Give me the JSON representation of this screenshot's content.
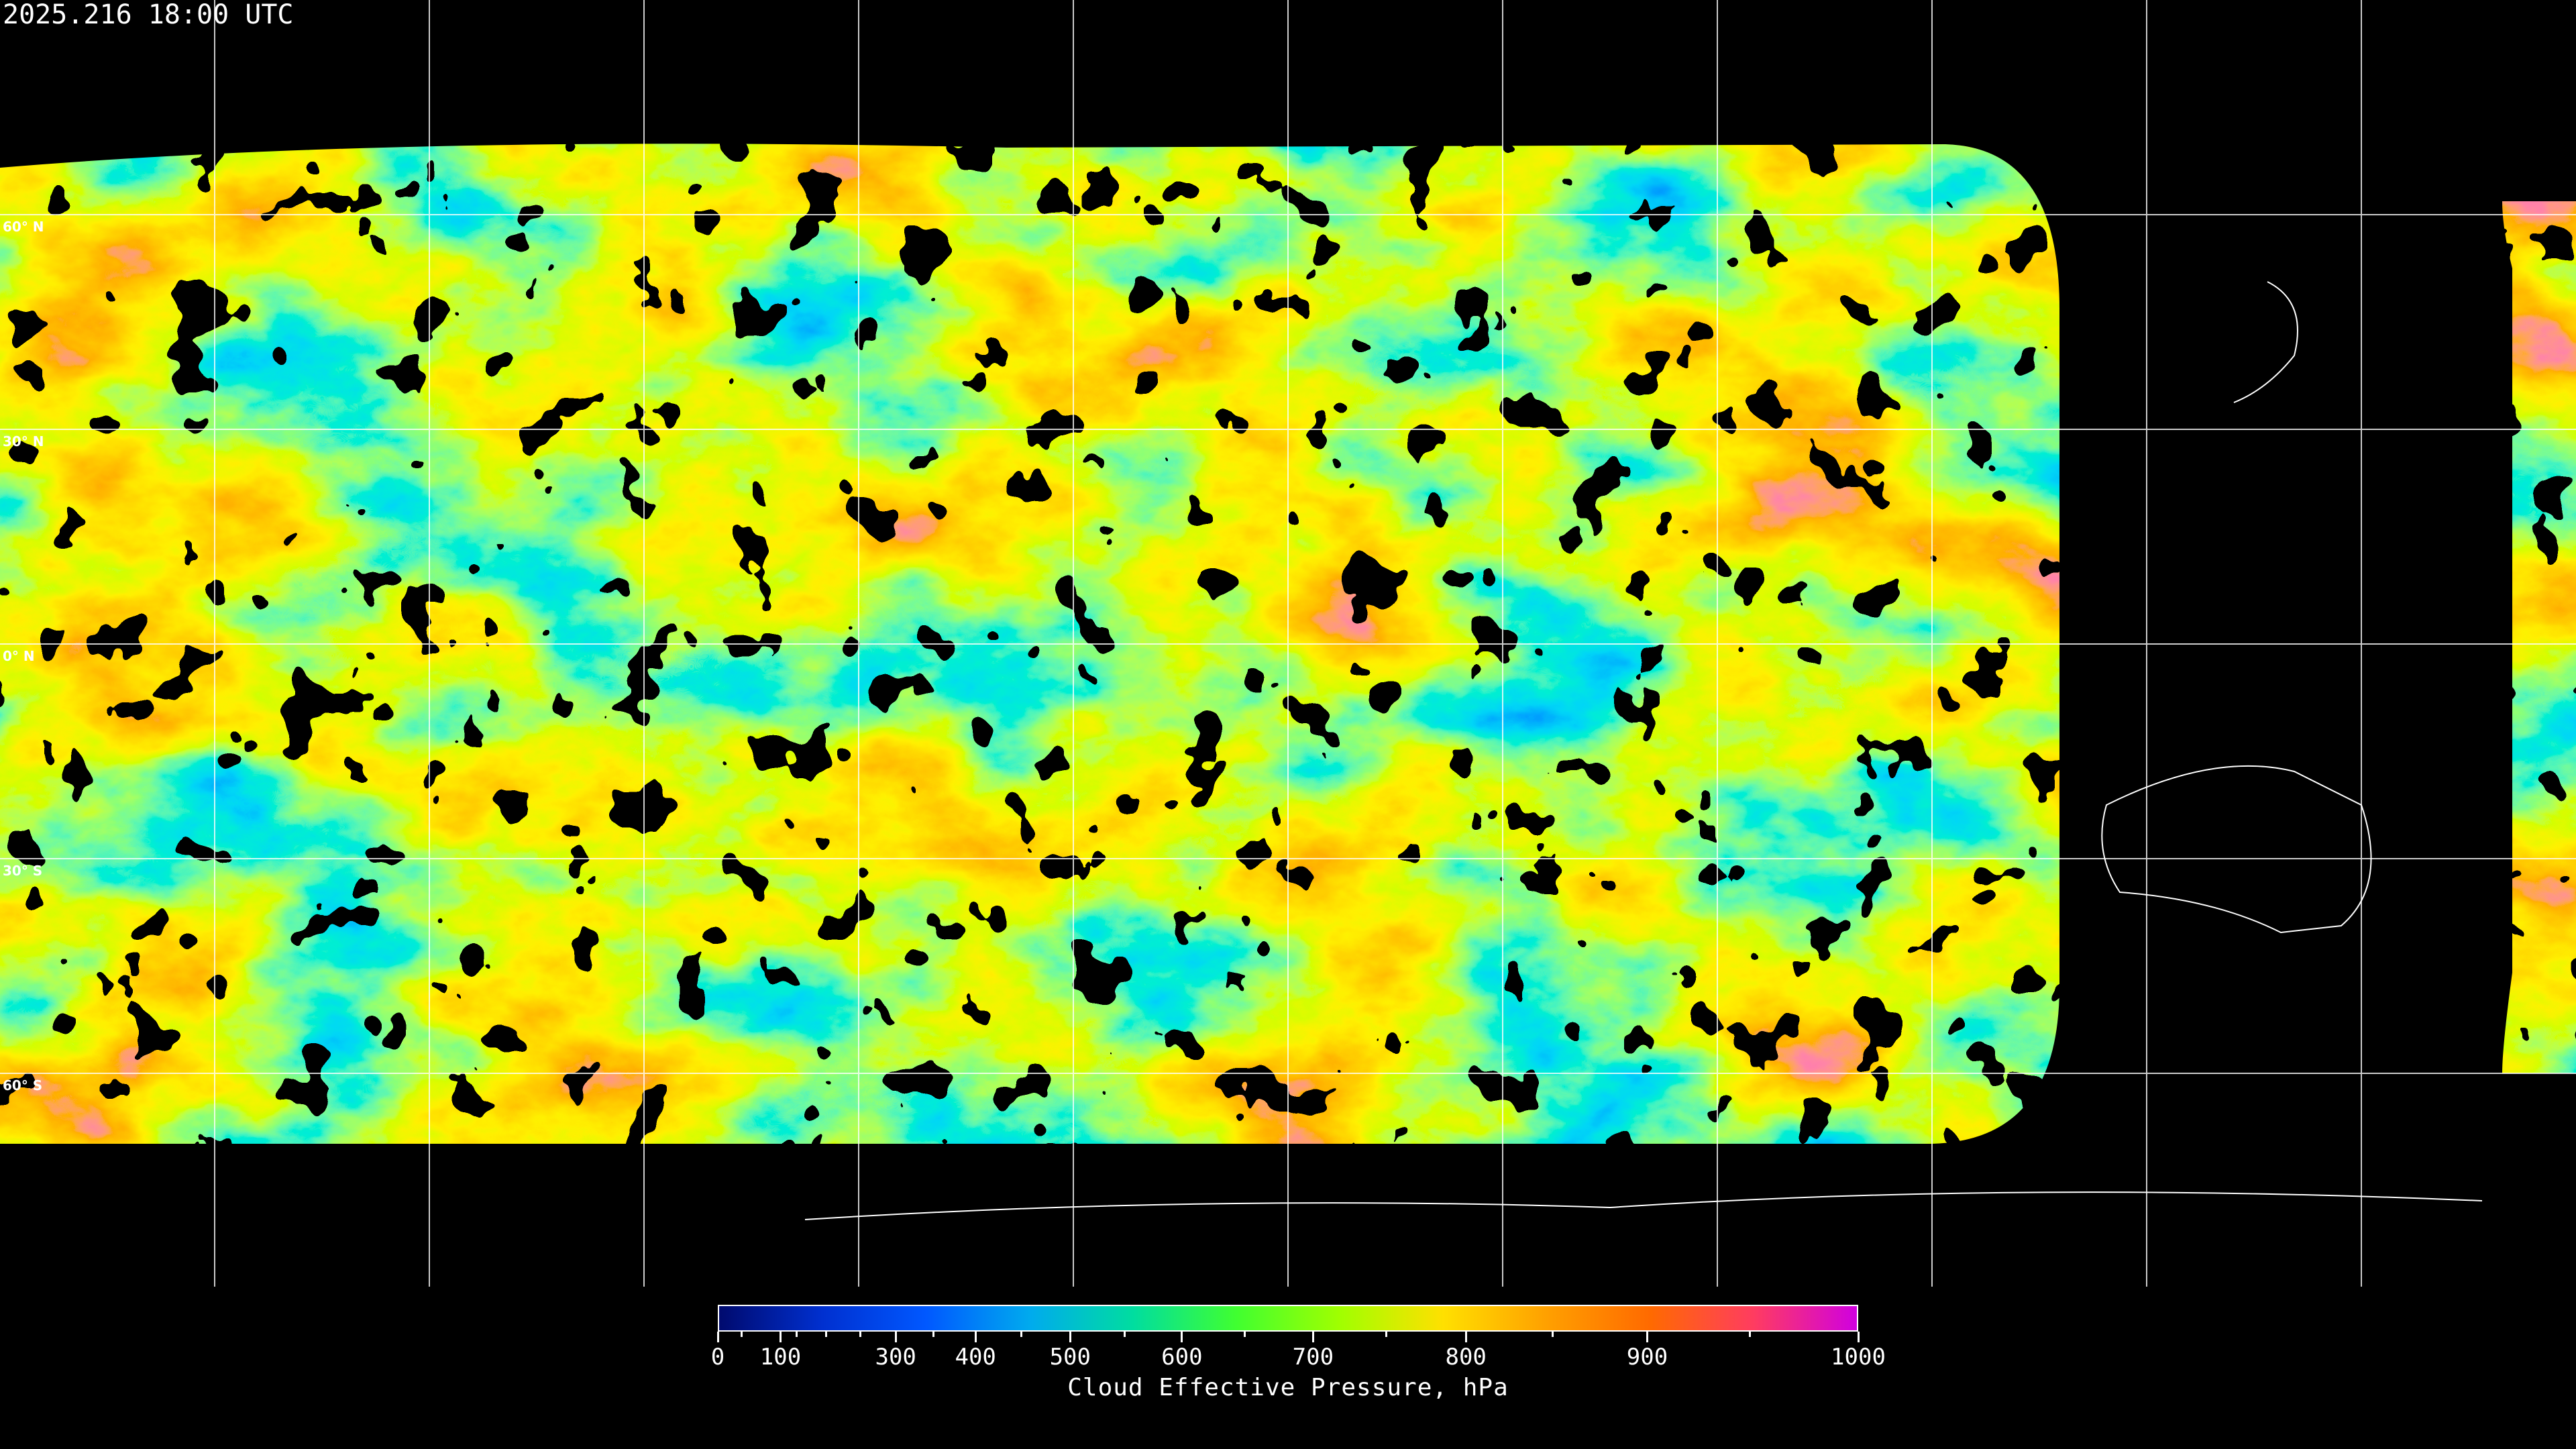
{
  "header": {
    "timestamp": "2025.216 18:00 UTC"
  },
  "map": {
    "projection": "equirectangular",
    "graticule_spacing_deg": 30,
    "graticule_color": "#ffffff",
    "lat_labels": [
      "60° N",
      "30° N",
      "0° N",
      "30° S",
      "60° S"
    ],
    "background_color": "#000000"
  },
  "colorbar": {
    "title": "Cloud Effective Pressure, hPa",
    "range": [
      0,
      1000
    ],
    "labels": [
      "0",
      "100",
      "300",
      "400",
      "500",
      "600",
      "700",
      "800",
      "900",
      "1000"
    ],
    "minor_ticks": [
      50,
      150,
      200,
      250,
      350,
      450,
      550,
      650,
      750,
      850,
      950
    ],
    "colors": [
      "#000a6e",
      "#0030d0",
      "#0058ff",
      "#00aaee",
      "#00dda0",
      "#40ff30",
      "#a0ff00",
      "#ffe000",
      "#ffa000",
      "#ff6a00",
      "#ff3c60",
      "#d000e0"
    ]
  }
}
